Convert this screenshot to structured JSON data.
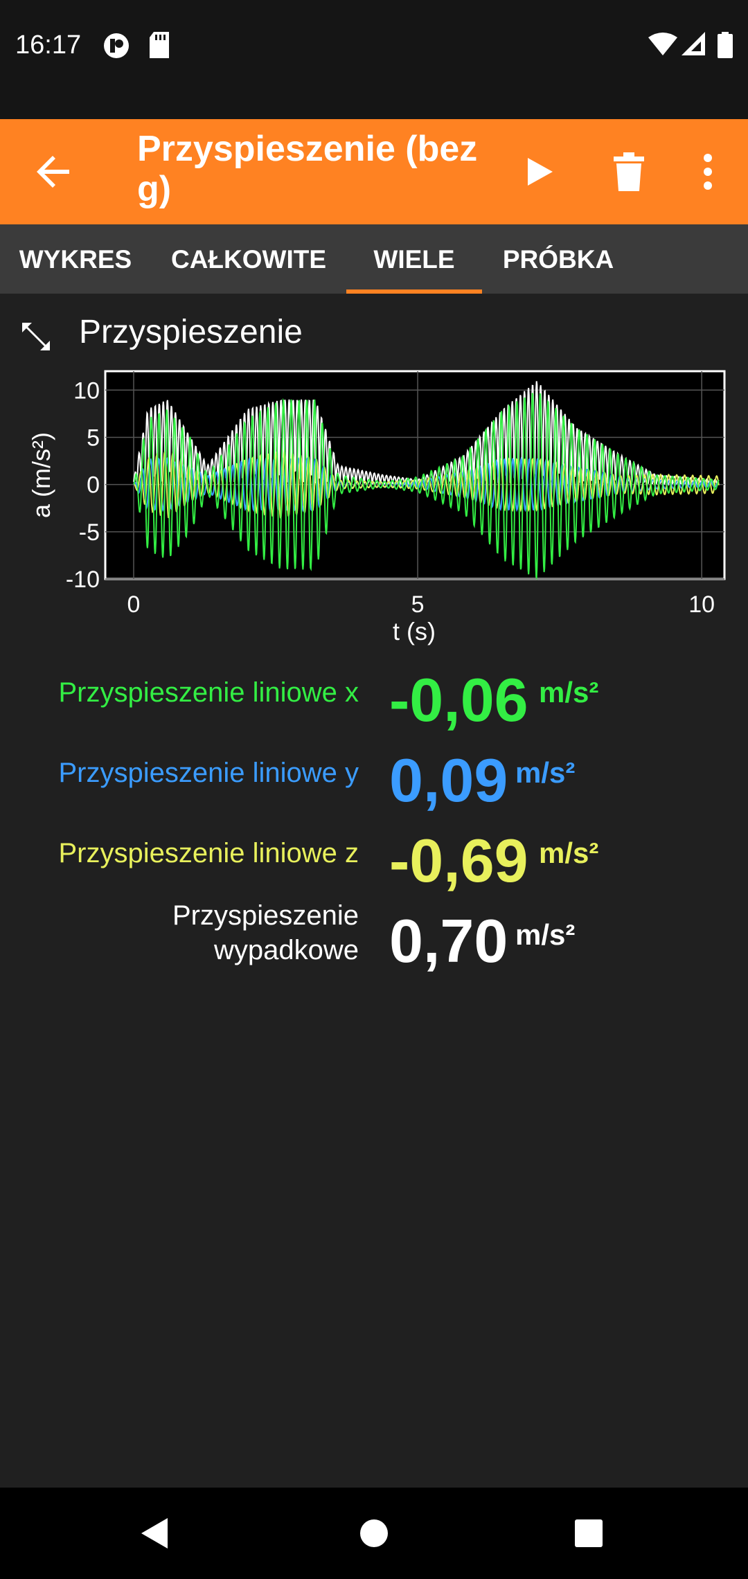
{
  "status_bar": {
    "time": "16:17",
    "left_icons": [
      "app-notification-icon",
      "sd-card-icon"
    ],
    "right_icons": [
      "wifi-icon",
      "cell-signal-icon",
      "battery-icon"
    ]
  },
  "app_bar": {
    "title": "Przyspieszenie (bez g)",
    "actions": [
      "back-arrow-icon",
      "play-icon",
      "trash-icon",
      "more-vert-icon"
    ]
  },
  "tabs": [
    {
      "label": "WYKRES",
      "active": false
    },
    {
      "label": "CAŁKOWITE",
      "active": false
    },
    {
      "label": "WIELE",
      "active": true
    },
    {
      "label": "PRÓBKA",
      "active": false
    }
  ],
  "section": {
    "title": "Przyspieszenie"
  },
  "chart_data": {
    "type": "line",
    "title": "Przyspieszenie",
    "xlabel": "t (s)",
    "ylabel": "a (m/s²)",
    "xlim": [
      0,
      10.4
    ],
    "ylim": [
      -10,
      12
    ],
    "x_ticks": [
      "0",
      "5",
      "10"
    ],
    "y_ticks": [
      "10",
      "5",
      "0",
      "-5",
      "-10"
    ],
    "x_tick_values": [
      0,
      5,
      10
    ],
    "y_tick_values": [
      10,
      5,
      0,
      -5,
      -10
    ],
    "grid": true,
    "series": [
      {
        "name": "Przyspieszenie liniowe x",
        "color": "#33ee44",
        "peak_envelope": [
          [
            0,
            0
          ],
          [
            0.25,
            7
          ],
          [
            0.6,
            8
          ],
          [
            1.0,
            5
          ],
          [
            1.3,
            1
          ],
          [
            2.0,
            7
          ],
          [
            2.6,
            9
          ],
          [
            3.2,
            9
          ],
          [
            3.6,
            1
          ],
          [
            4.4,
            0.3
          ],
          [
            5.0,
            0.8
          ],
          [
            5.8,
            3
          ],
          [
            6.5,
            8
          ],
          [
            7.1,
            10
          ],
          [
            7.8,
            6
          ],
          [
            8.6,
            3
          ],
          [
            9.2,
            1
          ],
          [
            10.3,
            0.5
          ]
        ]
      },
      {
        "name": "Przyspieszenie liniowe y",
        "color": "#3b9cff",
        "peak_envelope": [
          [
            0,
            0
          ],
          [
            0.25,
            3
          ],
          [
            0.6,
            3
          ],
          [
            1.0,
            2
          ],
          [
            1.3,
            1
          ],
          [
            2.0,
            3
          ],
          [
            2.6,
            3
          ],
          [
            3.2,
            3
          ],
          [
            3.6,
            0.5
          ],
          [
            4.4,
            0.3
          ],
          [
            5.0,
            0.4
          ],
          [
            5.8,
            1.5
          ],
          [
            6.5,
            3
          ],
          [
            7.1,
            3
          ],
          [
            7.8,
            2
          ],
          [
            8.6,
            1
          ],
          [
            9.2,
            0.5
          ],
          [
            10.3,
            0.3
          ]
        ]
      },
      {
        "name": "Przyspieszenie liniowe z",
        "color": "#e8f05c",
        "peak_envelope": [
          [
            0,
            0
          ],
          [
            0.25,
            3
          ],
          [
            0.6,
            4
          ],
          [
            1.0,
            2
          ],
          [
            1.3,
            1
          ],
          [
            2.0,
            3
          ],
          [
            2.6,
            4
          ],
          [
            3.2,
            3
          ],
          [
            3.6,
            0.5
          ],
          [
            4.4,
            0.3
          ],
          [
            5.0,
            0.5
          ],
          [
            5.8,
            1.5
          ],
          [
            6.5,
            3
          ],
          [
            7.1,
            3
          ],
          [
            7.8,
            2
          ],
          [
            8.6,
            1
          ],
          [
            9.2,
            1.2
          ],
          [
            10.3,
            1
          ]
        ]
      },
      {
        "name": "Przyspieszenie wypadkowe",
        "color": "#ffffff",
        "peak_envelope": [
          [
            0,
            0.5
          ],
          [
            0.25,
            8
          ],
          [
            0.6,
            9
          ],
          [
            1.0,
            5
          ],
          [
            1.3,
            2
          ],
          [
            2.0,
            8
          ],
          [
            2.6,
            9
          ],
          [
            3.2,
            9
          ],
          [
            3.6,
            2
          ],
          [
            4.4,
            1
          ],
          [
            5.0,
            0.5
          ],
          [
            5.8,
            3
          ],
          [
            6.5,
            8
          ],
          [
            7.1,
            11
          ],
          [
            7.8,
            6
          ],
          [
            8.6,
            3
          ],
          [
            9.2,
            1
          ],
          [
            10.3,
            0.5
          ]
        ]
      }
    ]
  },
  "readouts": [
    {
      "label": "Przyspieszenie liniowe x",
      "value": "-0,06",
      "unit": "m/s²",
      "color": "#33ee44"
    },
    {
      "label": "Przyspieszenie liniowe y",
      "value": "0,09",
      "unit": "m/s²",
      "color": "#3b9cff"
    },
    {
      "label": "Przyspieszenie liniowe z",
      "value": "-0,69",
      "unit": "m/s²",
      "color": "#e8f05c"
    },
    {
      "label_line1": "Przyspieszenie",
      "label_line2": "wypadkowe",
      "value": "0,70",
      "unit": "m/s²",
      "color": "#ffffff"
    }
  ],
  "nav_bar": {
    "buttons": [
      "nav-back-icon",
      "nav-home-icon",
      "nav-recents-icon"
    ]
  },
  "colors": {
    "accent": "#ff8222",
    "background": "#202020",
    "tab_bar": "#3b3b3b"
  }
}
